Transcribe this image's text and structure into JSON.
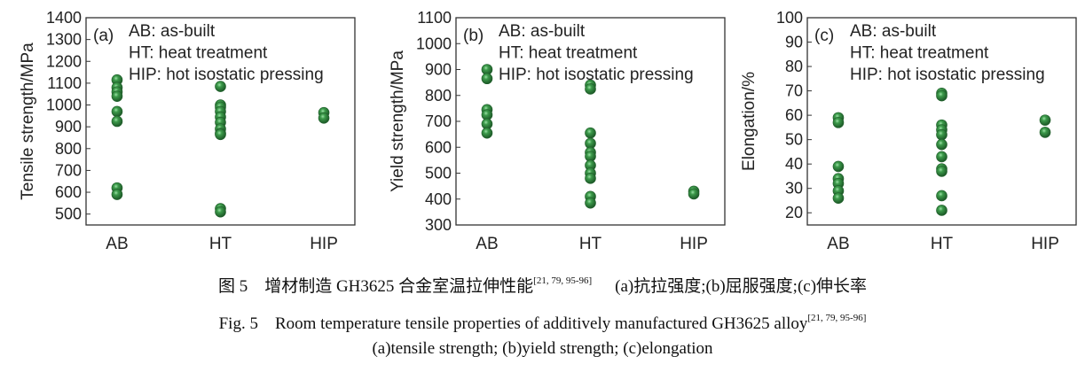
{
  "chart_data": [
    {
      "type": "scatter",
      "panel_label": "(a)",
      "ylabel": "Tensile strength/MPa",
      "categories": [
        "AB",
        "HT",
        "HIP"
      ],
      "ylim": [
        450,
        1400
      ],
      "yticks": [
        500,
        600,
        700,
        800,
        900,
        1000,
        1100,
        1200,
        1300,
        1400
      ],
      "values": {
        "AB": [
          1115,
          1080,
          1060,
          1040,
          970,
          925,
          620,
          590
        ],
        "HT": [
          1085,
          1000,
          990,
          970,
          945,
          920,
          890,
          870,
          865,
          525,
          510
        ],
        "HIP": [
          965,
          940
        ]
      },
      "legend": [
        "AB: as-built",
        "HT: heat treatment",
        "HIP: hot isostatic pressing"
      ],
      "grid": false
    },
    {
      "type": "scatter",
      "panel_label": "(b)",
      "ylabel": "Yield strength/MPa",
      "categories": [
        "AB",
        "HT",
        "HIP"
      ],
      "ylim": [
        300,
        1100
      ],
      "yticks": [
        300,
        400,
        500,
        600,
        700,
        800,
        900,
        1000,
        1100
      ],
      "values": {
        "AB": [
          900,
          865,
          745,
          725,
          690,
          655
        ],
        "HT": [
          840,
          825,
          655,
          615,
          580,
          565,
          530,
          500,
          480,
          410,
          385
        ],
        "HIP": [
          430,
          420
        ]
      },
      "legend": [
        "AB: as-built",
        "HT: heat treatment",
        "HIP: hot isostatic pressing"
      ],
      "grid": false
    },
    {
      "type": "scatter",
      "panel_label": "(c)",
      "ylabel": "Elongation/%",
      "categories": [
        "AB",
        "HT",
        "HIP"
      ],
      "ylim": [
        15,
        100
      ],
      "yticks": [
        20,
        30,
        40,
        50,
        60,
        70,
        80,
        90,
        100
      ],
      "values": {
        "AB": [
          59,
          57,
          39,
          34,
          32,
          29,
          26
        ],
        "HT": [
          69,
          68,
          56,
          54,
          52,
          48,
          43,
          38,
          37,
          27,
          21
        ],
        "HIP": [
          58,
          53
        ]
      },
      "legend": [
        "AB: as-built",
        "HT: heat treatment",
        "HIP: hot isostatic pressing"
      ],
      "grid": false
    }
  ],
  "colors": {
    "marker": "#2e7d3a",
    "marker_highlight": "#8fd19a",
    "axis": "#333333"
  },
  "caption": {
    "cn_main": "图 5　增材制造 GH3625 合金室温拉伸性能",
    "cn_ref": "[21, 79, 95-96]",
    "cn_sub": "(a)抗拉强度;(b)屈服强度;(c)伸长率",
    "en_main": "Fig. 5　Room temperature tensile properties of additively manufactured GH3625 alloy",
    "en_ref": "[21, 79, 95-96]",
    "en_sub": "(a)tensile strength; (b)yield strength; (c)elongation"
  }
}
